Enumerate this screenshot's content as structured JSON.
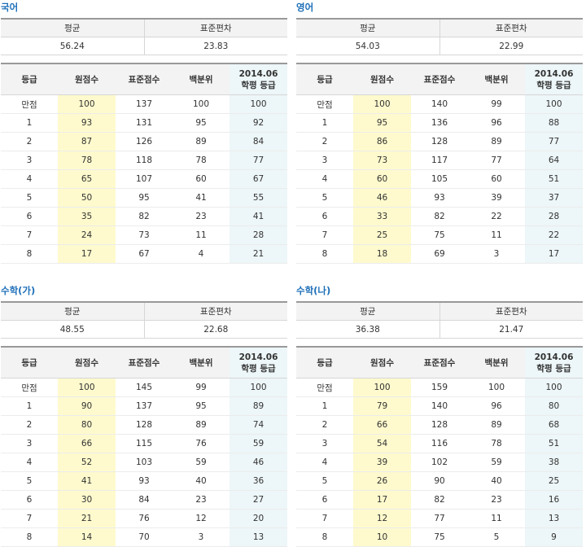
{
  "labels": {
    "mean": "평균",
    "stdev": "표준편차",
    "col_grade": "등급",
    "col_raw": "원점수",
    "col_std": "표준점수",
    "col_pct": "백분위",
    "col_hak1": "2014.06",
    "col_hak2": "학평 등급"
  },
  "panels": [
    {
      "title": "국어",
      "mean": "56.24",
      "stdev": "23.83",
      "rows": [
        [
          "만점",
          "100",
          "137",
          "100",
          "100"
        ],
        [
          "1",
          "93",
          "131",
          "95",
          "92"
        ],
        [
          "2",
          "87",
          "126",
          "89",
          "84"
        ],
        [
          "3",
          "78",
          "118",
          "78",
          "77"
        ],
        [
          "4",
          "65",
          "107",
          "60",
          "67"
        ],
        [
          "5",
          "50",
          "95",
          "41",
          "55"
        ],
        [
          "6",
          "35",
          "82",
          "23",
          "41"
        ],
        [
          "7",
          "24",
          "73",
          "11",
          "28"
        ],
        [
          "8",
          "17",
          "67",
          "4",
          "21"
        ]
      ]
    },
    {
      "title": "영어",
      "mean": "54.03",
      "stdev": "22.99",
      "rows": [
        [
          "만점",
          "100",
          "140",
          "99",
          "100"
        ],
        [
          "1",
          "95",
          "136",
          "96",
          "88"
        ],
        [
          "2",
          "86",
          "128",
          "89",
          "77"
        ],
        [
          "3",
          "73",
          "117",
          "77",
          "64"
        ],
        [
          "4",
          "60",
          "105",
          "60",
          "51"
        ],
        [
          "5",
          "46",
          "93",
          "39",
          "37"
        ],
        [
          "6",
          "33",
          "82",
          "22",
          "28"
        ],
        [
          "7",
          "25",
          "75",
          "11",
          "22"
        ],
        [
          "8",
          "18",
          "69",
          "3",
          "17"
        ]
      ]
    },
    {
      "title": "수학(가)",
      "mean": "48.55",
      "stdev": "22.68",
      "rows": [
        [
          "만점",
          "100",
          "145",
          "99",
          "100"
        ],
        [
          "1",
          "90",
          "137",
          "95",
          "89"
        ],
        [
          "2",
          "80",
          "128",
          "89",
          "74"
        ],
        [
          "3",
          "66",
          "115",
          "76",
          "59"
        ],
        [
          "4",
          "52",
          "103",
          "59",
          "46"
        ],
        [
          "5",
          "41",
          "93",
          "40",
          "36"
        ],
        [
          "6",
          "30",
          "84",
          "23",
          "27"
        ],
        [
          "7",
          "21",
          "76",
          "12",
          "20"
        ],
        [
          "8",
          "14",
          "70",
          "3",
          "13"
        ]
      ]
    },
    {
      "title": "수학(나)",
      "mean": "36.38",
      "stdev": "21.47",
      "rows": [
        [
          "만점",
          "100",
          "159",
          "100",
          "100"
        ],
        [
          "1",
          "79",
          "140",
          "96",
          "80"
        ],
        [
          "2",
          "66",
          "128",
          "89",
          "68"
        ],
        [
          "3",
          "54",
          "116",
          "78",
          "51"
        ],
        [
          "4",
          "39",
          "102",
          "59",
          "38"
        ],
        [
          "5",
          "26",
          "90",
          "40",
          "25"
        ],
        [
          "6",
          "17",
          "82",
          "23",
          "16"
        ],
        [
          "7",
          "12",
          "77",
          "11",
          "13"
        ],
        [
          "8",
          "10",
          "75",
          "5",
          "9"
        ]
      ]
    }
  ]
}
